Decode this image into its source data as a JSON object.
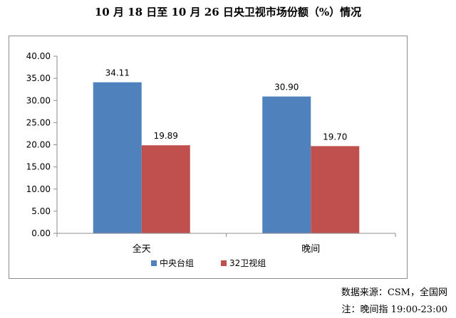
{
  "chart_data": {
    "type": "bar",
    "title": "10 月 18 日至 10 月 26 日央卫视市场份额（%）情况",
    "categories": [
      "全天",
      "晚间"
    ],
    "series": [
      {
        "name": "中央台组",
        "values": [
          34.11,
          30.9
        ],
        "labels": [
          "34.11",
          "30.90"
        ],
        "color": "#4f81bd"
      },
      {
        "name": "32卫视组",
        "values": [
          19.89,
          19.7
        ],
        "labels": [
          "19.89",
          "19.70"
        ],
        "color": "#c0504d"
      }
    ],
    "ylim": [
      0,
      40
    ],
    "yticks": [
      "0.00",
      "5.00",
      "10.00",
      "15.00",
      "20.00",
      "25.00",
      "30.00",
      "35.00",
      "40.00"
    ],
    "grid": false,
    "legend_position": "bottom"
  },
  "notes": {
    "source": "数据来源：CSM，全国网",
    "time": "注：晚间指 19:00-23:00"
  }
}
